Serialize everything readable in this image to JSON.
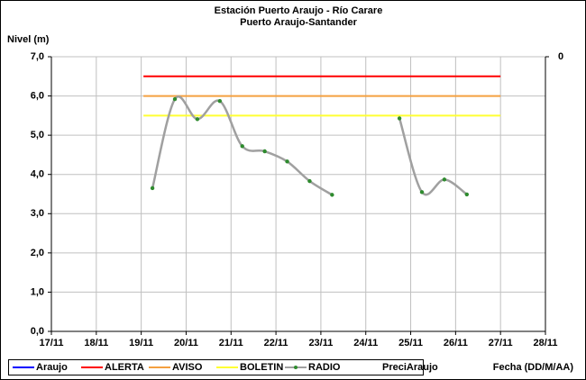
{
  "chart_data": {
    "type": "line",
    "title": "Estación Puerto Araujo - Río Carare",
    "subtitle": "Puerto Araujo-Santander",
    "y_label": "Nivel (m)",
    "x_label": "Fecha (DD/M/AA)",
    "xlim": [
      17,
      28
    ],
    "xticks": [
      {
        "value": 17,
        "label": "17/11"
      },
      {
        "value": 18,
        "label": "18/11"
      },
      {
        "value": 19,
        "label": "19/11"
      },
      {
        "value": 20,
        "label": "20/11"
      },
      {
        "value": 21,
        "label": "21/11"
      },
      {
        "value": 22,
        "label": "22/11"
      },
      {
        "value": 23,
        "label": "23/11"
      },
      {
        "value": 24,
        "label": "24/11"
      },
      {
        "value": 25,
        "label": "25/11"
      },
      {
        "value": 26,
        "label": "26/11"
      },
      {
        "value": 27,
        "label": "27/11"
      },
      {
        "value": 28,
        "label": "28/11"
      }
    ],
    "ylim": [
      0,
      7
    ],
    "yticks": [
      {
        "value": 0,
        "label": "0,0"
      },
      {
        "value": 1,
        "label": "1,0"
      },
      {
        "value": 2,
        "label": "2,0"
      },
      {
        "value": 3,
        "label": "3,0"
      },
      {
        "value": 4,
        "label": "4,0"
      },
      {
        "value": 5,
        "label": "5,0"
      },
      {
        "value": 6,
        "label": "6,0"
      },
      {
        "value": 7,
        "label": "7,0"
      }
    ],
    "y2ticks": [
      0
    ],
    "grid": true,
    "series": [
      {
        "name": "Araujo",
        "color": "#0000ff",
        "x": [],
        "values": []
      },
      {
        "name": "ALERTA",
        "color": "#ff0000",
        "x": [
          19.05,
          27
        ],
        "values": [
          6.5,
          6.5
        ]
      },
      {
        "name": "AVISO",
        "color": "#f4a040",
        "x": [
          19.05,
          27
        ],
        "values": [
          6.0,
          6.0
        ]
      },
      {
        "name": "BOLETIN",
        "color": "#ffff33",
        "x": [
          19.05,
          27
        ],
        "values": [
          5.5,
          5.5
        ]
      },
      {
        "name": "RADIO",
        "color": "#a0a0a0",
        "marker_color": "#2e8b2e",
        "smooth": true,
        "x": [
          19.25,
          19.75,
          20.25,
          20.75,
          21.25,
          21.75,
          22.25,
          22.75,
          23.25,
          24.0,
          24.75,
          25.25,
          25.75,
          26.25
        ],
        "values": [
          3.65,
          5.92,
          5.41,
          5.87,
          4.72,
          4.59,
          4.33,
          3.83,
          3.48,
          null,
          5.43,
          3.55,
          3.87,
          3.49
        ]
      },
      {
        "name": "PreciAraujo",
        "axis": "y2",
        "x": [],
        "values": []
      }
    ]
  }
}
